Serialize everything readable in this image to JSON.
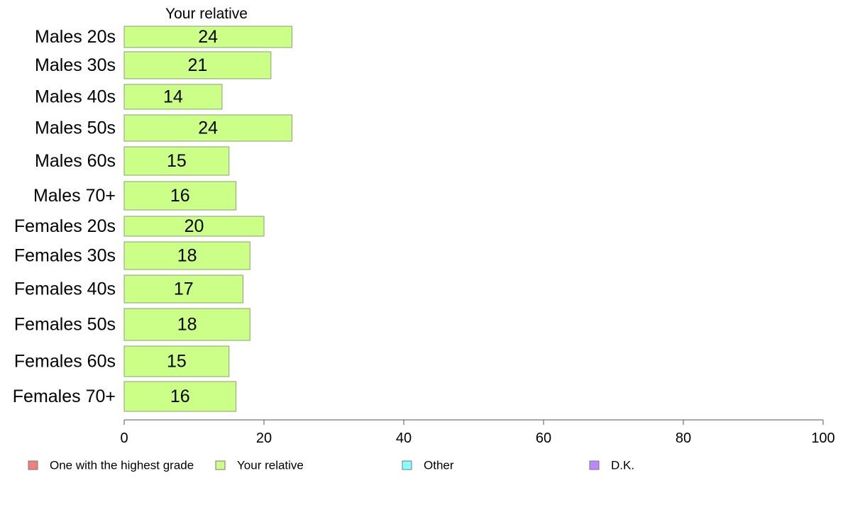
{
  "chart_data": {
    "type": "bar",
    "orientation": "horizontal",
    "title": "Your relative",
    "categories": [
      "Males 20s",
      "Males 30s",
      "Males 40s",
      "Males 50s",
      "Males 60s",
      "Males 70+",
      "Females 20s",
      "Females 30s",
      "Females 40s",
      "Females 50s",
      "Females 60s",
      "Females 70+"
    ],
    "series": [
      {
        "name": "Your relative",
        "color": "#ccff88",
        "values": [
          24,
          21,
          14,
          24,
          15,
          16,
          20,
          18,
          17,
          18,
          15,
          16
        ]
      }
    ],
    "xlim": [
      0,
      100
    ],
    "xticks": [
      0,
      20,
      40,
      60,
      80,
      100
    ],
    "grid": false,
    "legend_position": "bottom",
    "legend": [
      {
        "label": "One with the highest grade",
        "color": "#f08080"
      },
      {
        "label": "Your relative",
        "color": "#ccff88"
      },
      {
        "label": "Other",
        "color": "#88ffff"
      },
      {
        "label": "D.K.",
        "color": "#bb88ff"
      }
    ]
  }
}
